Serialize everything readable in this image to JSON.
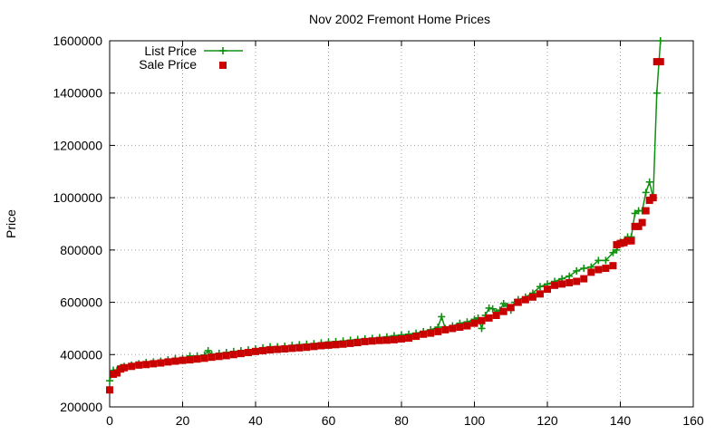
{
  "chart_data": {
    "type": "line",
    "title": "Nov 2002 Fremont Home Prices",
    "xlabel": "",
    "ylabel": "Price",
    "xlim": [
      0,
      160
    ],
    "ylim": [
      200000,
      1600000
    ],
    "xticks": [
      "0",
      "20",
      "40",
      "60",
      "80",
      "100",
      "120",
      "140",
      "160"
    ],
    "yticks": [
      "200000",
      "400000",
      "600000",
      "800000",
      "1000000",
      "1200000",
      "1400000",
      "1600000"
    ],
    "grid": true,
    "legend_position": "top-left",
    "series": [
      {
        "name": "List Price",
        "color": "#109010",
        "marker": "plus",
        "x": [
          0,
          1,
          2,
          3,
          4,
          6,
          8,
          10,
          12,
          14,
          16,
          18,
          20,
          22,
          24,
          26,
          27,
          28,
          30,
          32,
          34,
          36,
          38,
          40,
          42,
          44,
          46,
          48,
          50,
          52,
          54,
          56,
          58,
          60,
          62,
          64,
          66,
          68,
          70,
          72,
          74,
          76,
          78,
          80,
          82,
          84,
          86,
          88,
          90,
          91,
          92,
          94,
          96,
          98,
          100,
          101,
          102,
          103,
          104,
          105,
          106,
          107,
          108,
          109,
          110,
          111,
          112,
          114,
          116,
          118,
          120,
          122,
          124,
          126,
          128,
          130,
          132,
          134,
          136,
          138,
          139,
          140,
          141,
          142,
          143,
          144,
          145,
          146,
          147,
          148,
          149,
          150,
          151
        ],
        "values": [
          300000,
          340000,
          340000,
          350000,
          355000,
          360000,
          365000,
          370000,
          372000,
          375000,
          380000,
          385000,
          385000,
          395000,
          395000,
          398000,
          415000,
          400000,
          405000,
          408000,
          412000,
          415000,
          418000,
          422000,
          426000,
          430000,
          430000,
          432000,
          435000,
          438000,
          440000,
          442000,
          445000,
          448000,
          450000,
          452000,
          455000,
          458000,
          460000,
          462000,
          465000,
          468000,
          472000,
          475000,
          478000,
          482000,
          488000,
          495000,
          505000,
          545000,
          500000,
          510000,
          520000,
          525000,
          535000,
          540000,
          500000,
          550000,
          578000,
          575000,
          562000,
          570000,
          595000,
          585000,
          570000,
          600000,
          610000,
          620000,
          635000,
          660000,
          670000,
          680000,
          690000,
          700000,
          720000,
          730000,
          735000,
          760000,
          760000,
          790000,
          800000,
          830000,
          830000,
          850000,
          850000,
          940000,
          950000,
          950000,
          1020000,
          1060000,
          1000000,
          1400000,
          1600000
        ]
      },
      {
        "name": "Sale Price",
        "color": "#c80000",
        "marker": "square",
        "x": [
          0,
          1,
          2,
          3,
          4,
          6,
          8,
          10,
          12,
          14,
          16,
          18,
          20,
          22,
          24,
          26,
          28,
          30,
          32,
          34,
          36,
          38,
          40,
          42,
          44,
          46,
          48,
          50,
          52,
          54,
          56,
          58,
          60,
          62,
          64,
          66,
          68,
          70,
          72,
          74,
          76,
          78,
          80,
          82,
          84,
          86,
          88,
          90,
          92,
          94,
          96,
          98,
          100,
          102,
          104,
          106,
          108,
          110,
          112,
          114,
          116,
          118,
          120,
          122,
          124,
          126,
          128,
          130,
          132,
          134,
          136,
          138,
          139,
          140,
          141,
          142,
          143,
          144,
          145,
          146,
          147,
          148,
          149,
          150,
          151
        ],
        "values": [
          265000,
          325000,
          330000,
          345000,
          350000,
          355000,
          360000,
          362000,
          365000,
          368000,
          372000,
          375000,
          378000,
          380000,
          383000,
          386000,
          390000,
          393000,
          396000,
          400000,
          404000,
          408000,
          412000,
          415000,
          418000,
          420000,
          422000,
          424000,
          426000,
          428000,
          431000,
          434000,
          436000,
          438000,
          440000,
          443000,
          446000,
          450000,
          452000,
          454000,
          455000,
          457000,
          460000,
          463000,
          470000,
          478000,
          482000,
          488000,
          495000,
          500000,
          505000,
          510000,
          520000,
          530000,
          540000,
          550000,
          565000,
          580000,
          600000,
          610000,
          620000,
          632000,
          650000,
          665000,
          670000,
          675000,
          680000,
          690000,
          715000,
          725000,
          730000,
          740000,
          820000,
          825000,
          828000,
          835000,
          835000,
          890000,
          890000,
          905000,
          950000,
          990000,
          1000000,
          1520000,
          1520000
        ]
      }
    ]
  }
}
